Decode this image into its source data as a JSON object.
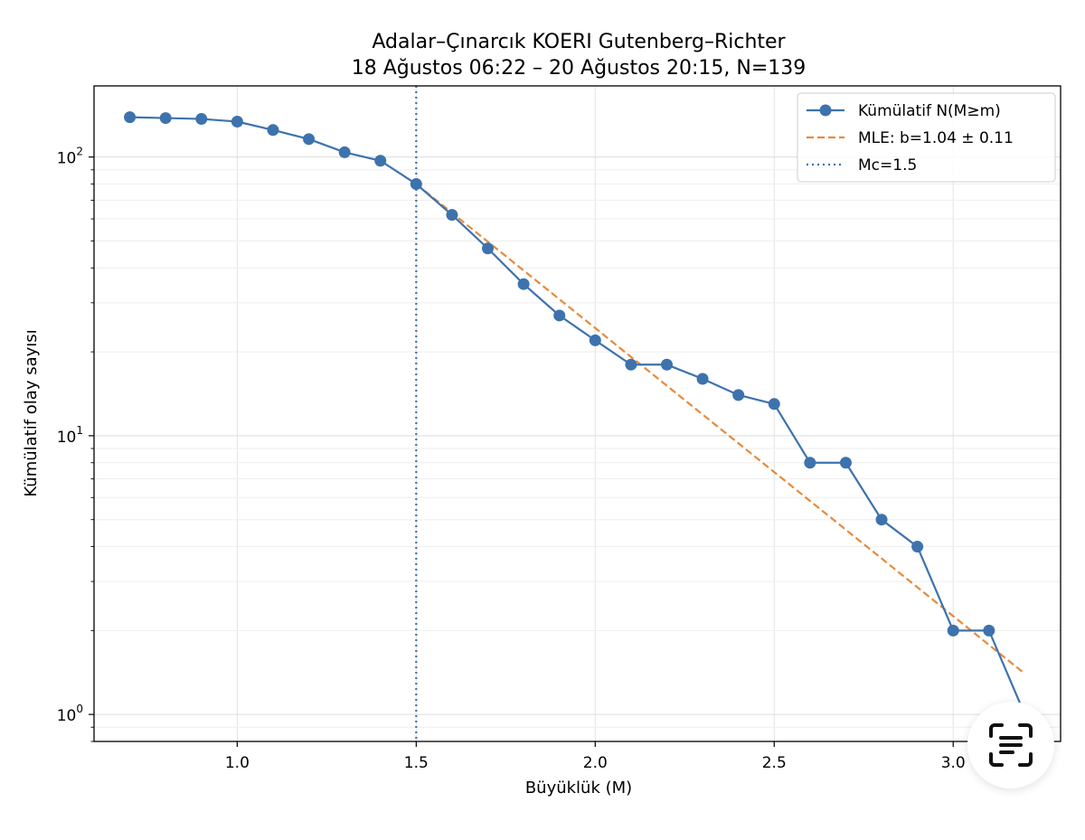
{
  "chart_data": {
    "type": "line",
    "title_line1": "Adalar–Çınarcık KOERI Gutenberg–Richter",
    "title_line2": "18 Ağustos 06:22 – 20 Ağustos 20:15, N=139",
    "xlabel": "Büyüklük (M)",
    "ylabel": "Kümülatif olay sayısı",
    "yscale": "log",
    "xlim": [
      0.6,
      3.3
    ],
    "ylim": [
      0.8,
      180
    ],
    "xticks": [
      "1.0",
      "1.5",
      "2.0",
      "2.5",
      "3.0"
    ],
    "xtick_values": [
      1.0,
      1.5,
      2.0,
      2.5,
      3.0
    ],
    "yticks": [
      {
        "value": 1,
        "base": "10",
        "exp": "0"
      },
      {
        "value": 10,
        "base": "10",
        "exp": "1"
      },
      {
        "value": 100,
        "base": "10",
        "exp": "2"
      }
    ],
    "grid": true,
    "legend_position": "top-right",
    "series": [
      {
        "name": "Kümülatif N(M≥m)",
        "color": "#3d72ad",
        "style": "solid-markers",
        "x": [
          0.7,
          0.8,
          0.9,
          1.0,
          1.1,
          1.2,
          1.3,
          1.4,
          1.5,
          1.6,
          1.7,
          1.8,
          1.9,
          2.0,
          2.1,
          2.2,
          2.3,
          2.4,
          2.5,
          2.6,
          2.7,
          2.8,
          2.9,
          3.0,
          3.1,
          3.2
        ],
        "y": [
          139,
          138,
          137,
          134,
          125,
          116,
          104,
          97,
          80,
          62,
          47,
          35,
          27,
          22,
          18,
          18,
          16,
          14,
          13,
          8,
          8,
          5,
          4,
          2,
          2,
          1
        ]
      },
      {
        "name": "MLE: b=1.04 ± 0.11",
        "color": "#e8893a",
        "style": "dashed",
        "x": [
          1.5,
          3.2
        ],
        "y": [
          80,
          1.4
        ]
      }
    ],
    "mc": {
      "name": "Mc=1.5",
      "value": 1.5,
      "color": "#3d72ad",
      "style": "dotted"
    }
  },
  "icons": {
    "lens": "text-scan-icon"
  }
}
